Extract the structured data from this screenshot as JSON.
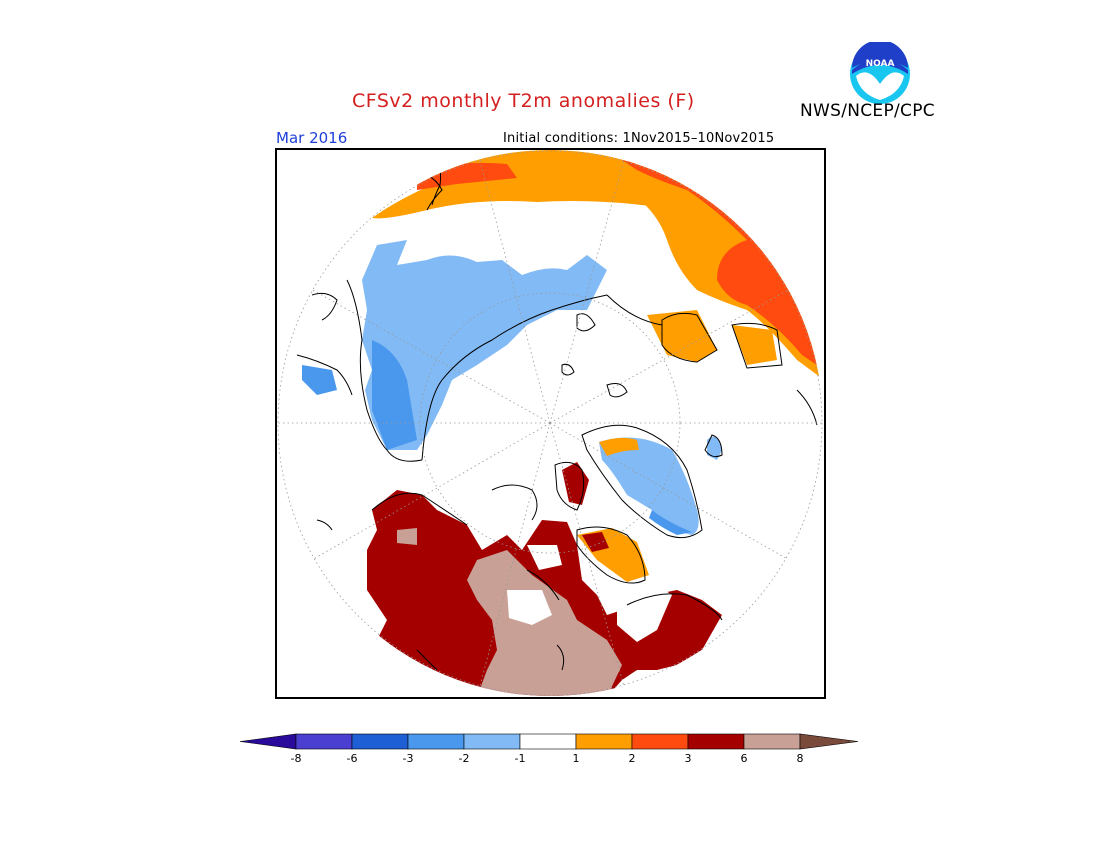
{
  "header": {
    "title": "CFSv2 monthly T2m anomalies (F)",
    "agency": "NWS/NCEP/CPC",
    "valid_month": "Mar 2016",
    "initial_conditions": "Initial conditions: 1Nov2015–10Nov2015"
  },
  "logo": {
    "icon": "noaa-logo-icon",
    "text": "NOAA"
  },
  "colors": {
    "title": "#d42020",
    "valid_month": "#1f3fd9",
    "bin_lt_-8": "#2a0a9a",
    "bin_-8_-6": "#4a3fd0",
    "bin_-6_-3": "#1f5fd6",
    "bin_-3_-2": "#4a98ee",
    "bin_-2_-1": "#82baf5",
    "bin_-1_1": "#ffffff",
    "bin_1_2": "#ff9e00",
    "bin_2_3": "#ff4a10",
    "bin_3_6": "#a50000",
    "bin_6_8": "#c8a096",
    "bin_gt_8": "#7a4a3a"
  },
  "legend": {
    "labels": [
      "-8",
      "-6",
      "-3",
      "-2",
      "-1",
      "1",
      "2",
      "3",
      "6",
      "8"
    ]
  }
}
